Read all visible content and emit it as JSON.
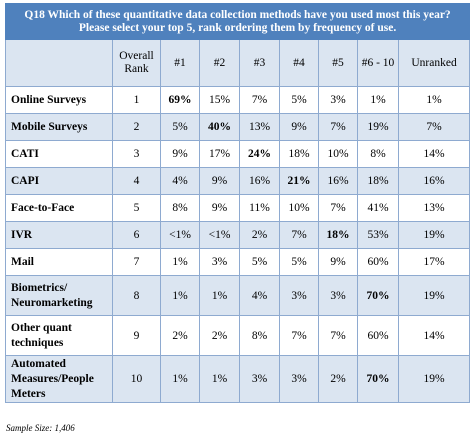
{
  "title": {
    "line1": "Q18 Which of these quantitative data collection methods have you used most this year?",
    "line2": "Please select your top 5, rank ordering them by frequency of use."
  },
  "columns": [
    "",
    "Overall Rank",
    "#1",
    "#2",
    "#3",
    "#4",
    "#5",
    "#6 - 10",
    "Unranked"
  ],
  "rows": [
    {
      "label": "Online Surveys",
      "values": [
        "1",
        "69%",
        "15%",
        "7%",
        "5%",
        "3%",
        "1%",
        "1%"
      ],
      "highlight": 1
    },
    {
      "label": "Mobile Surveys",
      "values": [
        "2",
        "5%",
        "40%",
        "13%",
        "9%",
        "7%",
        "19%",
        "7%"
      ],
      "highlight": 2
    },
    {
      "label": "CATI",
      "values": [
        "3",
        "9%",
        "17%",
        "24%",
        "18%",
        "10%",
        "8%",
        "14%"
      ],
      "highlight": 3
    },
    {
      "label": "CAPI",
      "values": [
        "4",
        "4%",
        "9%",
        "16%",
        "21%",
        "16%",
        "18%",
        "16%"
      ],
      "highlight": 4
    },
    {
      "label": "Face-to-Face",
      "values": [
        "5",
        "8%",
        "9%",
        "11%",
        "10%",
        "7%",
        "41%",
        "13%"
      ],
      "highlight": -1
    },
    {
      "label": "IVR",
      "values": [
        "6",
        "<1%",
        "<1%",
        "2%",
        "7%",
        "18%",
        "53%",
        "19%"
      ],
      "highlight": 5
    },
    {
      "label": "Mail",
      "values": [
        "7",
        "1%",
        "3%",
        "5%",
        "5%",
        "9%",
        "60%",
        "17%"
      ],
      "highlight": -1
    },
    {
      "label": "Biometrics/ Neuromarketing",
      "values": [
        "8",
        "1%",
        "1%",
        "4%",
        "3%",
        "3%",
        "70%",
        "19%"
      ],
      "highlight": 6
    },
    {
      "label": "Other quant techniques",
      "values": [
        "9",
        "2%",
        "2%",
        "8%",
        "7%",
        "7%",
        "60%",
        "14%"
      ],
      "highlight": -1
    },
    {
      "label": "Automated Measures/People Meters",
      "values": [
        "10",
        "1%",
        "1%",
        "3%",
        "3%",
        "2%",
        "70%",
        "19%"
      ],
      "highlight": 6
    }
  ],
  "footnote": "Sample Size: 1,406",
  "colors": {
    "title_bg": "#4f81bd",
    "alt_row_bg": "#dbe5f1",
    "border": "#8eaad0"
  }
}
